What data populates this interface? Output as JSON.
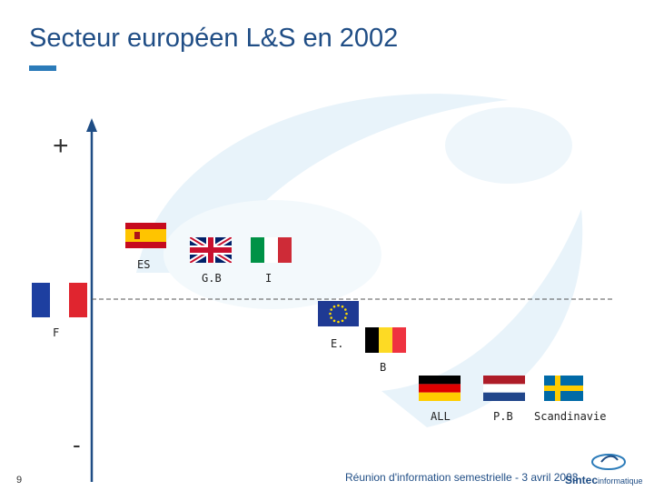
{
  "slide": {
    "title": "Secteur européen L&S en 2002",
    "axis_top": "+",
    "axis_bottom": "-",
    "page_number": "9",
    "footer": "Réunion d'information semestrielle - 3 avril 2003",
    "logo_brand": "Sintec",
    "logo_suffix": "informatique"
  },
  "countries": [
    {
      "label": "ES",
      "flag": "spain"
    },
    {
      "label": "G.B",
      "flag": "uk"
    },
    {
      "label": "I",
      "flag": "italy"
    },
    {
      "label": "F",
      "flag": "france"
    },
    {
      "label": "E.",
      "flag": "eu"
    },
    {
      "label": "B",
      "flag": "belgium"
    },
    {
      "label": "ALL",
      "flag": "germany"
    },
    {
      "label": "P.B",
      "flag": "netherlands"
    },
    {
      "label": "Scandinavie",
      "flag": "sweden"
    }
  ],
  "colors": {
    "title": "#1f4d85",
    "accent": "#2b7bb9",
    "axis": "#1f4d85",
    "watermark": "#e6f2f9"
  }
}
